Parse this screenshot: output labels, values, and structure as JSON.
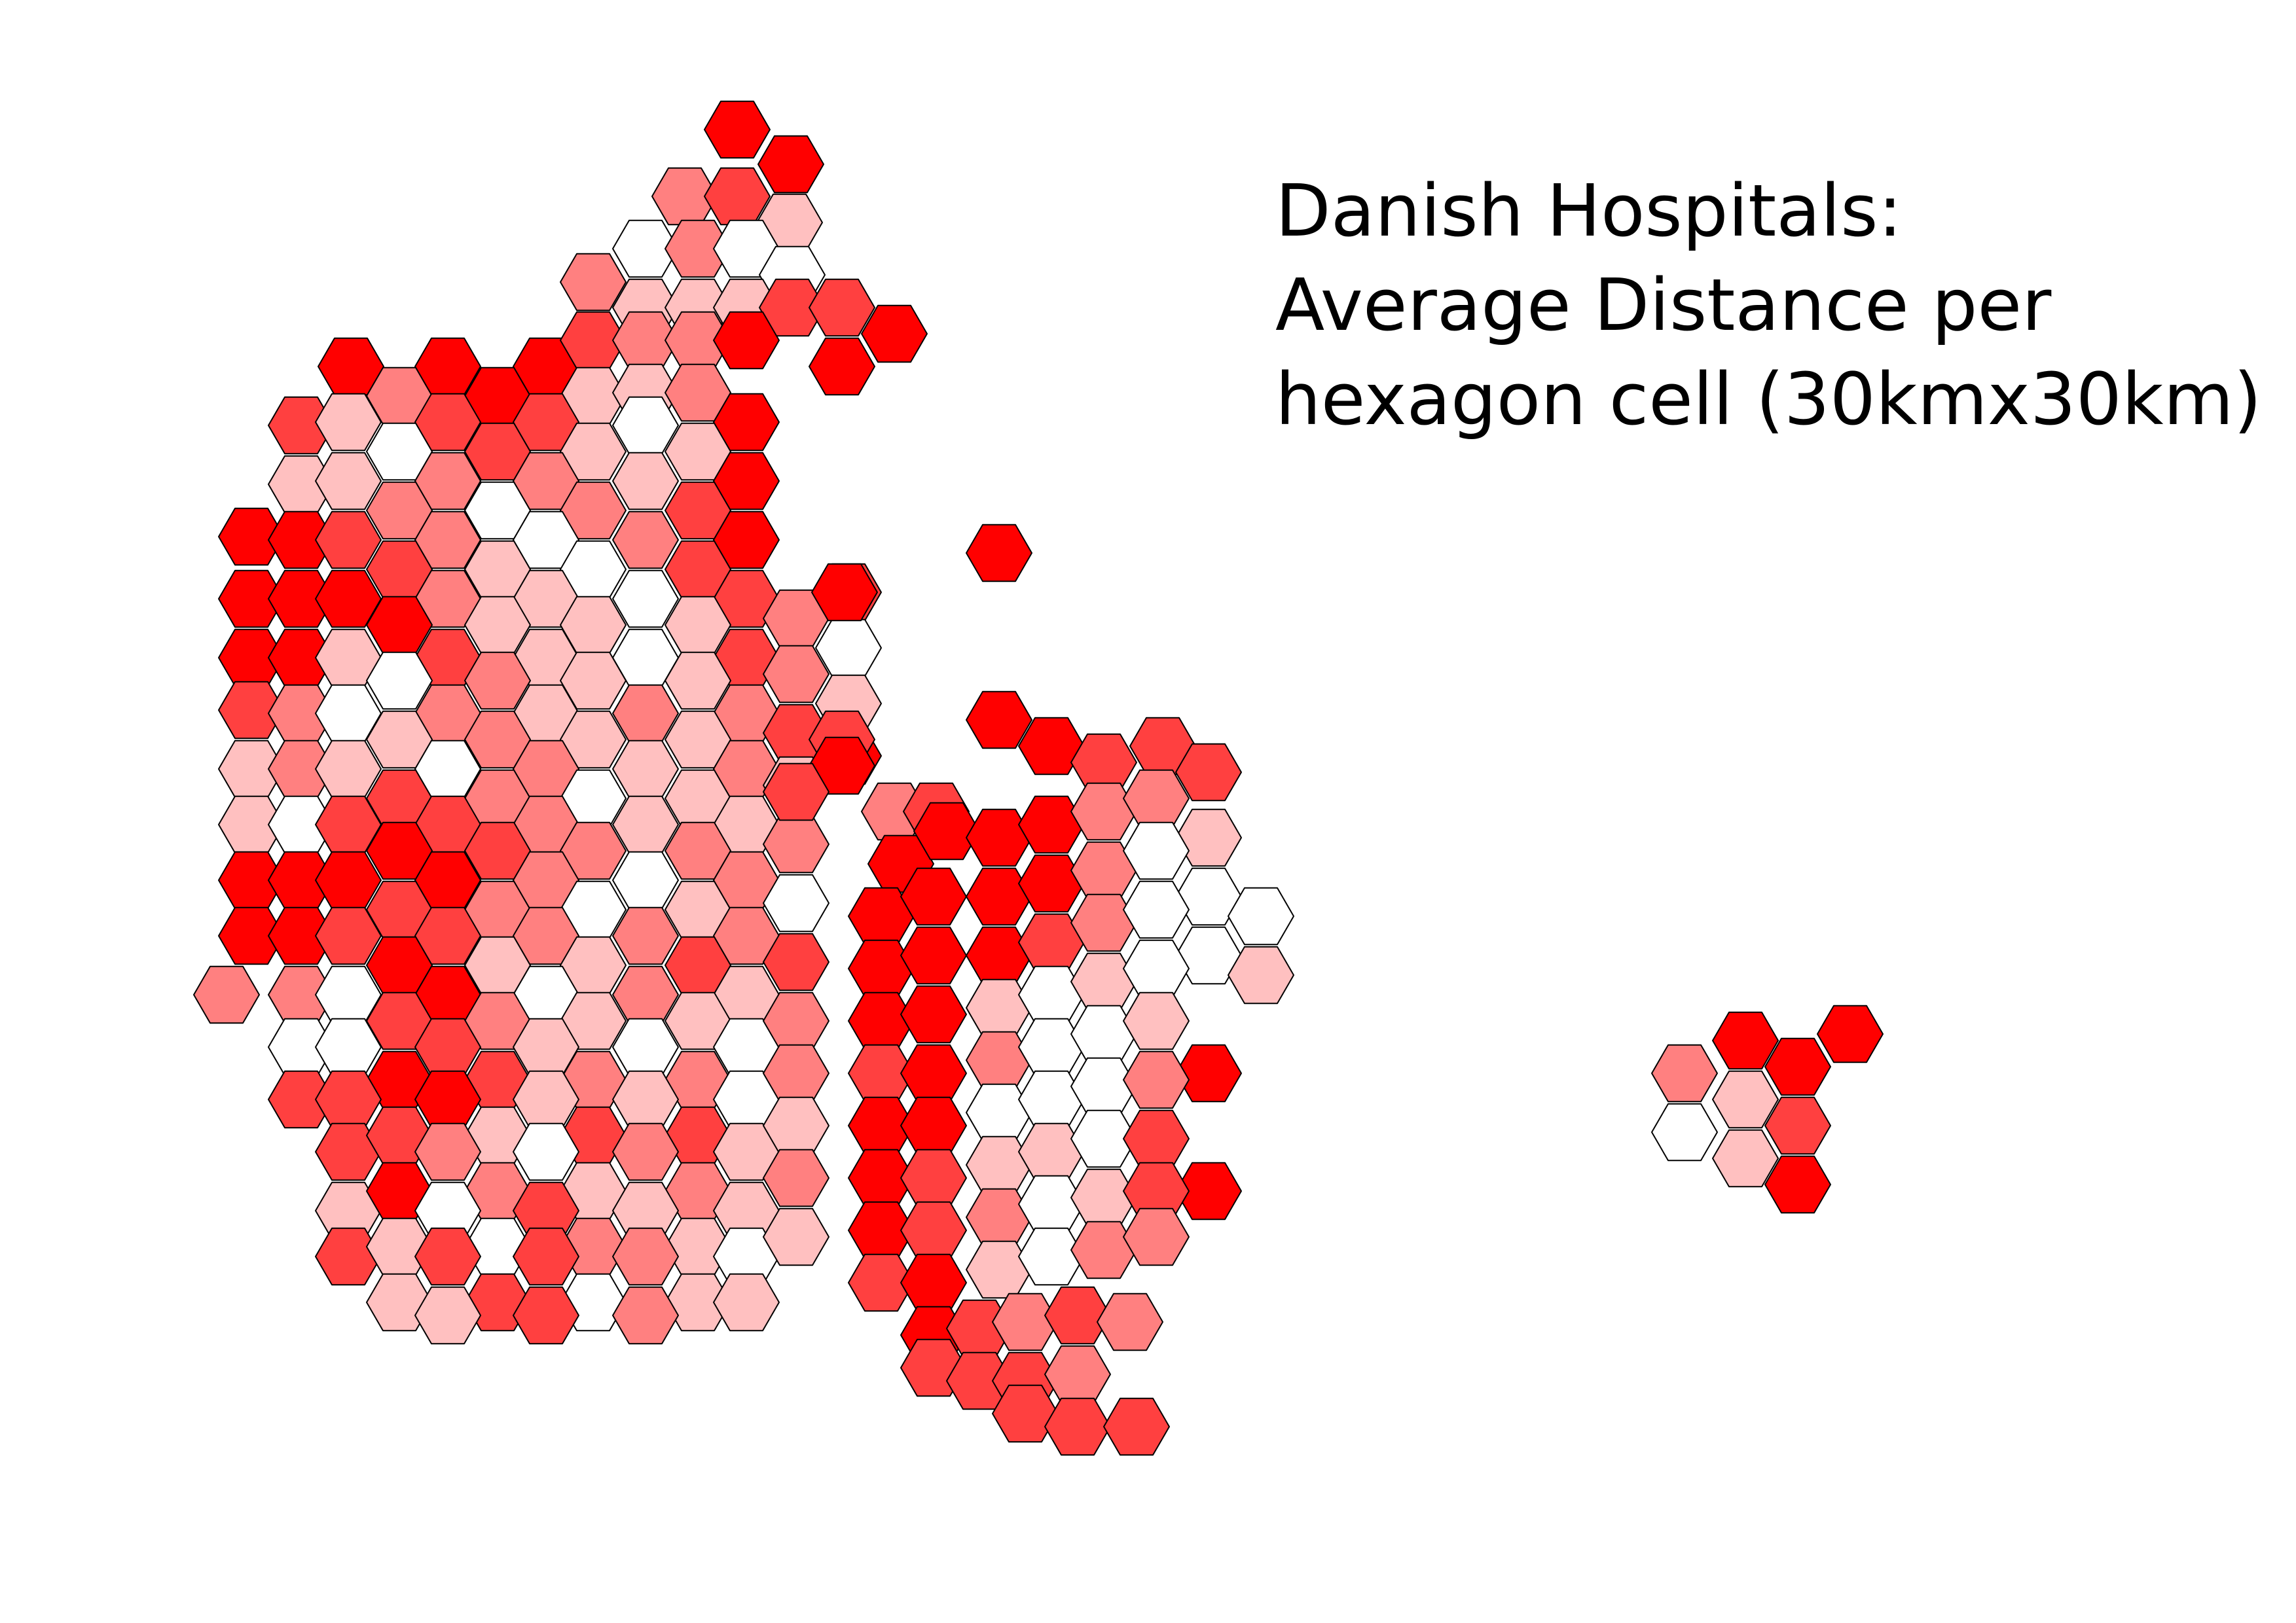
{
  "title": {
    "line1": "Danish Hospitals:",
    "line2": "Average Distance per",
    "line3": "hexagon cell (30kmx30km)"
  },
  "colors": {
    "0": "#ffffff",
    "1": "#ffc0c0",
    "2": "#ff8080",
    "3": "#ff4040",
    "4": "#ff0000"
  },
  "cells": [
    [
      1126,
      198,
      4
    ],
    [
      1208,
      251,
      4
    ],
    [
      1046,
      300,
      2
    ],
    [
      1126,
      300,
      3
    ],
    [
      1206,
      340,
      1
    ],
    [
      986,
      380,
      0
    ],
    [
      1066,
      380,
      2
    ],
    [
      1140,
      380,
      0
    ],
    [
      1210,
      420,
      0
    ],
    [
      906,
      431,
      2
    ],
    [
      986,
      470,
      1
    ],
    [
      1066,
      470,
      1
    ],
    [
      1140,
      470,
      1
    ],
    [
      1210,
      470,
      3
    ],
    [
      1286,
      470,
      3
    ],
    [
      1366,
      510,
      4
    ],
    [
      1286,
      560,
      4
    ],
    [
      536,
      560,
      4
    ],
    [
      684,
      560,
      4
    ],
    [
      834,
      560,
      4
    ],
    [
      906,
      520,
      3
    ],
    [
      986,
      520,
      2
    ],
    [
      1066,
      520,
      2
    ],
    [
      1140,
      520,
      4
    ],
    [
      460,
      650,
      3
    ],
    [
      610,
      605,
      2
    ],
    [
      760,
      605,
      4
    ],
    [
      906,
      605,
      1
    ],
    [
      986,
      600,
      1
    ],
    [
      1066,
      600,
      2
    ],
    [
      1140,
      645,
      4
    ],
    [
      532,
      645,
      1
    ],
    [
      684,
      645,
      3
    ],
    [
      834,
      645,
      3
    ],
    [
      986,
      650,
      0
    ],
    [
      460,
      740,
      1
    ],
    [
      610,
      690,
      0
    ],
    [
      760,
      690,
      3
    ],
    [
      906,
      690,
      1
    ],
    [
      1066,
      690,
      1
    ],
    [
      1140,
      735,
      4
    ],
    [
      384,
      820,
      4
    ],
    [
      532,
      735,
      1
    ],
    [
      684,
      735,
      2
    ],
    [
      834,
      735,
      2
    ],
    [
      986,
      735,
      1
    ],
    [
      460,
      825,
      4
    ],
    [
      610,
      780,
      2
    ],
    [
      760,
      780,
      0
    ],
    [
      906,
      780,
      2
    ],
    [
      1066,
      780,
      3
    ],
    [
      1140,
      825,
      4
    ],
    [
      384,
      915,
      4
    ],
    [
      532,
      825,
      3
    ],
    [
      684,
      825,
      2
    ],
    [
      834,
      825,
      0
    ],
    [
      986,
      825,
      2
    ],
    [
      460,
      915,
      4
    ],
    [
      610,
      870,
      3
    ],
    [
      760,
      870,
      1
    ],
    [
      906,
      870,
      0
    ],
    [
      1066,
      870,
      3
    ],
    [
      1140,
      915,
      3
    ],
    [
      384,
      1005,
      4
    ],
    [
      532,
      915,
      4
    ],
    [
      684,
      915,
      2
    ],
    [
      834,
      915,
      1
    ],
    [
      986,
      915,
      0
    ],
    [
      460,
      1005,
      4
    ],
    [
      610,
      955,
      4
    ],
    [
      760,
      955,
      1
    ],
    [
      906,
      955,
      1
    ],
    [
      1066,
      955,
      1
    ],
    [
      1140,
      1005,
      3
    ],
    [
      1216,
      945,
      2
    ],
    [
      1296,
      905,
      3
    ],
    [
      532,
      1005,
      1
    ],
    [
      684,
      1005,
      3
    ],
    [
      834,
      1005,
      1
    ],
    [
      986,
      1005,
      0
    ],
    [
      1296,
      990,
      0
    ],
    [
      384,
      1085,
      3
    ],
    [
      460,
      1090,
      2
    ],
    [
      610,
      1040,
      0
    ],
    [
      760,
      1040,
      2
    ],
    [
      906,
      1040,
      1
    ],
    [
      1066,
      1040,
      1
    ],
    [
      1140,
      1090,
      2
    ],
    [
      1216,
      1030,
      2
    ],
    [
      532,
      1090,
      0
    ],
    [
      684,
      1090,
      2
    ],
    [
      834,
      1090,
      1
    ],
    [
      986,
      1090,
      2
    ],
    [
      1296,
      1075,
      1
    ],
    [
      384,
      1175,
      1
    ],
    [
      460,
      1175,
      2
    ],
    [
      610,
      1130,
      1
    ],
    [
      760,
      1130,
      2
    ],
    [
      906,
      1130,
      1
    ],
    [
      1066,
      1130,
      1
    ],
    [
      1140,
      1175,
      2
    ],
    [
      1216,
      1120,
      3
    ],
    [
      1296,
      1155,
      4
    ],
    [
      532,
      1175,
      1
    ],
    [
      684,
      1175,
      0
    ],
    [
      834,
      1175,
      2
    ],
    [
      986,
      1175,
      1
    ],
    [
      384,
      1260,
      1
    ],
    [
      460,
      1260,
      0
    ],
    [
      610,
      1220,
      3
    ],
    [
      760,
      1220,
      2
    ],
    [
      906,
      1220,
      0
    ],
    [
      1066,
      1220,
      1
    ],
    [
      1140,
      1260,
      1
    ],
    [
      1216,
      1200,
      1
    ],
    [
      532,
      1260,
      3
    ],
    [
      684,
      1260,
      3
    ],
    [
      834,
      1260,
      2
    ],
    [
      986,
      1260,
      1
    ],
    [
      384,
      1345,
      4
    ],
    [
      460,
      1345,
      4
    ],
    [
      610,
      1300,
      4
    ],
    [
      760,
      1300,
      3
    ],
    [
      906,
      1300,
      2
    ],
    [
      1066,
      1300,
      2
    ],
    [
      1140,
      1345,
      2
    ],
    [
      1216,
      1290,
      2
    ],
    [
      532,
      1345,
      4
    ],
    [
      684,
      1345,
      4
    ],
    [
      834,
      1345,
      2
    ],
    [
      986,
      1345,
      0
    ],
    [
      384,
      1430,
      4
    ],
    [
      460,
      1430,
      4
    ],
    [
      610,
      1390,
      3
    ],
    [
      760,
      1390,
      2
    ],
    [
      906,
      1390,
      0
    ],
    [
      1066,
      1390,
      1
    ],
    [
      1140,
      1430,
      2
    ],
    [
      1216,
      1380,
      0
    ],
    [
      532,
      1430,
      3
    ],
    [
      684,
      1430,
      3
    ],
    [
      834,
      1430,
      2
    ],
    [
      986,
      1430,
      2
    ],
    [
      346,
      1520,
      2
    ],
    [
      460,
      1520,
      2
    ],
    [
      610,
      1475,
      4
    ],
    [
      760,
      1475,
      1
    ],
    [
      906,
      1475,
      1
    ],
    [
      1066,
      1475,
      3
    ],
    [
      1140,
      1520,
      1
    ],
    [
      1216,
      1470,
      3
    ],
    [
      532,
      1520,
      0
    ],
    [
      684,
      1520,
      4
    ],
    [
      834,
      1520,
      0
    ],
    [
      986,
      1520,
      2
    ],
    [
      460,
      1600,
      0
    ],
    [
      610,
      1560,
      3
    ],
    [
      760,
      1560,
      2
    ],
    [
      906,
      1560,
      1
    ],
    [
      1066,
      1560,
      1
    ],
    [
      1140,
      1600,
      0
    ],
    [
      1216,
      1560,
      2
    ],
    [
      532,
      1600,
      0
    ],
    [
      684,
      1600,
      3
    ],
    [
      834,
      1600,
      1
    ],
    [
      986,
      1600,
      0
    ],
    [
      460,
      1680,
      3
    ],
    [
      610,
      1650,
      4
    ],
    [
      760,
      1650,
      3
    ],
    [
      906,
      1650,
      2
    ],
    [
      1066,
      1650,
      2
    ],
    [
      1140,
      1680,
      0
    ],
    [
      1216,
      1640,
      2
    ],
    [
      532,
      1680,
      3
    ],
    [
      684,
      1680,
      4
    ],
    [
      834,
      1680,
      1
    ],
    [
      986,
      1680,
      1
    ],
    [
      532,
      1760,
      3
    ],
    [
      610,
      1735,
      3
    ],
    [
      760,
      1735,
      1
    ],
    [
      906,
      1735,
      3
    ],
    [
      1066,
      1735,
      3
    ],
    [
      1140,
      1760,
      1
    ],
    [
      1216,
      1720,
      1
    ],
    [
      684,
      1760,
      2
    ],
    [
      834,
      1760,
      0
    ],
    [
      986,
      1760,
      2
    ],
    [
      532,
      1850,
      1
    ],
    [
      610,
      1820,
      4
    ],
    [
      760,
      1820,
      2
    ],
    [
      906,
      1820,
      1
    ],
    [
      1066,
      1820,
      2
    ],
    [
      1140,
      1850,
      1
    ],
    [
      1216,
      1800,
      2
    ],
    [
      684,
      1850,
      0
    ],
    [
      834,
      1850,
      3
    ],
    [
      986,
      1850,
      1
    ],
    [
      532,
      1920,
      3
    ],
    [
      610,
      1905,
      1
    ],
    [
      760,
      1905,
      0
    ],
    [
      906,
      1905,
      2
    ],
    [
      1066,
      1905,
      1
    ],
    [
      1140,
      1920,
      0
    ],
    [
      1216,
      1890,
      1
    ],
    [
      684,
      1920,
      3
    ],
    [
      834,
      1920,
      3
    ],
    [
      986,
      1920,
      2
    ],
    [
      610,
      1990,
      1
    ],
    [
      760,
      1990,
      3
    ],
    [
      906,
      1990,
      0
    ],
    [
      1066,
      1990,
      1
    ],
    [
      1140,
      1990,
      1
    ],
    [
      684,
      2010,
      1
    ],
    [
      834,
      2010,
      3
    ],
    [
      986,
      2010,
      2
    ],
    [
      1526,
      845,
      4
    ],
    [
      1290,
      905,
      4
    ],
    [
      1366,
      1240,
      2
    ],
    [
      1430,
      1240,
      3
    ],
    [
      1526,
      1100,
      4
    ],
    [
      1606,
      1140,
      4
    ],
    [
      1686,
      1165,
      3
    ],
    [
      1776,
      1140,
      3
    ],
    [
      1846,
      1180,
      3
    ],
    [
      1286,
      1130,
      3
    ],
    [
      1286,
      1170,
      4
    ],
    [
      1216,
      1210,
      3
    ],
    [
      1376,
      1320,
      4
    ],
    [
      1446,
      1270,
      4
    ],
    [
      1526,
      1280,
      4
    ],
    [
      1606,
      1260,
      4
    ],
    [
      1686,
      1240,
      2
    ],
    [
      1766,
      1220,
      2
    ],
    [
      1846,
      1280,
      1
    ],
    [
      1346,
      1400,
      4
    ],
    [
      1426,
      1370,
      4
    ],
    [
      1526,
      1370,
      4
    ],
    [
      1606,
      1350,
      4
    ],
    [
      1686,
      1330,
      2
    ],
    [
      1766,
      1300,
      0
    ],
    [
      1846,
      1370,
      0
    ],
    [
      1926,
      1400,
      0
    ],
    [
      1346,
      1480,
      4
    ],
    [
      1426,
      1460,
      4
    ],
    [
      1526,
      1460,
      4
    ],
    [
      1606,
      1440,
      3
    ],
    [
      1686,
      1410,
      2
    ],
    [
      1766,
      1390,
      0
    ],
    [
      1846,
      1460,
      0
    ],
    [
      1926,
      1490,
      1
    ],
    [
      1346,
      1560,
      4
    ],
    [
      1426,
      1550,
      4
    ],
    [
      1526,
      1540,
      1
    ],
    [
      1606,
      1520,
      0
    ],
    [
      1686,
      1500,
      1
    ],
    [
      1766,
      1480,
      0
    ],
    [
      1346,
      1640,
      3
    ],
    [
      1426,
      1640,
      4
    ],
    [
      1526,
      1620,
      2
    ],
    [
      1606,
      1600,
      0
    ],
    [
      1686,
      1580,
      0
    ],
    [
      1766,
      1560,
      1
    ],
    [
      1846,
      1640,
      4
    ],
    [
      1346,
      1720,
      4
    ],
    [
      1426,
      1720,
      4
    ],
    [
      1526,
      1700,
      0
    ],
    [
      1606,
      1680,
      0
    ],
    [
      1686,
      1660,
      0
    ],
    [
      1766,
      1650,
      2
    ],
    [
      1346,
      1800,
      4
    ],
    [
      1426,
      1800,
      3
    ],
    [
      1526,
      1780,
      1
    ],
    [
      1606,
      1760,
      1
    ],
    [
      1686,
      1740,
      0
    ],
    [
      1766,
      1740,
      3
    ],
    [
      1846,
      1820,
      4
    ],
    [
      1346,
      1880,
      4
    ],
    [
      1426,
      1880,
      3
    ],
    [
      1526,
      1860,
      2
    ],
    [
      1606,
      1840,
      0
    ],
    [
      1686,
      1830,
      1
    ],
    [
      1766,
      1820,
      3
    ],
    [
      1346,
      1960,
      3
    ],
    [
      1426,
      1960,
      4
    ],
    [
      1526,
      1940,
      1
    ],
    [
      1606,
      1920,
      0
    ],
    [
      1686,
      1910,
      2
    ],
    [
      1766,
      1890,
      2
    ],
    [
      1426,
      2040,
      4
    ],
    [
      1496,
      2030,
      3
    ],
    [
      1566,
      2020,
      2
    ],
    [
      1646,
      2010,
      3
    ],
    [
      1726,
      2020,
      2
    ],
    [
      1426,
      2090,
      3
    ],
    [
      1496,
      2110,
      3
    ],
    [
      1566,
      2110,
      3
    ],
    [
      1646,
      2100,
      2
    ],
    [
      1566,
      2160,
      3
    ],
    [
      1646,
      2180,
      3
    ],
    [
      1736,
      2180,
      3
    ],
    [
      2573,
      1640,
      2
    ],
    [
      2666,
      1590,
      4
    ],
    [
      2746,
      1630,
      4
    ],
    [
      2826,
      1580,
      4
    ],
    [
      2573,
      1730,
      0
    ],
    [
      2666,
      1680,
      1
    ],
    [
      2746,
      1720,
      3
    ],
    [
      2666,
      1770,
      1
    ],
    [
      2746,
      1810,
      4
    ]
  ]
}
